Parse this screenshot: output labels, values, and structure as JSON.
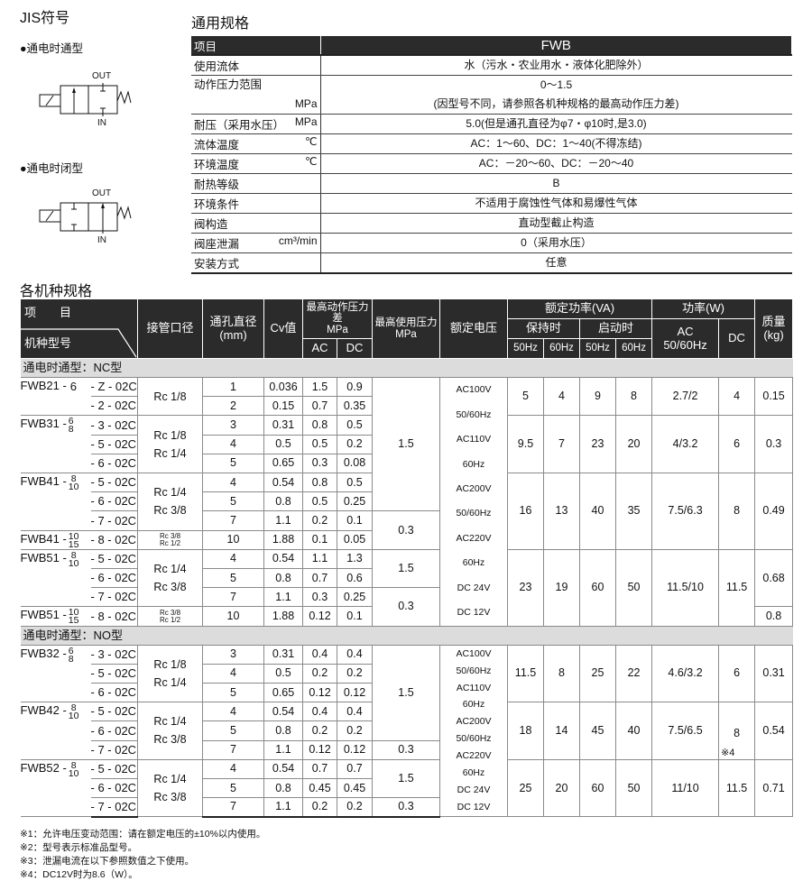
{
  "jis": {
    "title": "JIS符号",
    "no_type": "●通电时通型",
    "nc_type": "●通电时闭型",
    "port_out": "OUT",
    "port_in": "IN"
  },
  "general": {
    "title": "通用规格",
    "header": {
      "label": "项目",
      "value": "FWB"
    },
    "rows": [
      {
        "label": "使用流体",
        "unit": "",
        "value": [
          "水（污水・农业用水・液体化肥除外）"
        ]
      },
      {
        "label": "动作压力范围",
        "unit": "MPa",
        "value": [
          "0～1.5",
          "(因型号不同，请参照各机种规格的最高动作压力差)"
        ]
      },
      {
        "label": "耐压（采用水压）",
        "unit": "MPa",
        "value": [
          "5.0(但是通孔直径为φ7・φ10时,是3.0)"
        ]
      },
      {
        "label": "流体温度",
        "unit": "℃",
        "value": [
          "AC：1～60、DC：1～40(不得冻结)"
        ]
      },
      {
        "label": "环境温度",
        "unit": "℃",
        "value": [
          "AC：－20～60、DC：－20～40"
        ]
      },
      {
        "label": "耐热等级",
        "unit": "",
        "value": [
          "B"
        ]
      },
      {
        "label": "环境条件",
        "unit": "",
        "value": [
          "不适用于腐蚀性气体和易爆性气体"
        ]
      },
      {
        "label": "阀构造",
        "unit": "",
        "value": [
          "直动型截止构造"
        ]
      },
      {
        "label": "阀座泄漏",
        "unit": "cm³/min",
        "value": [
          "0（采用水压）"
        ]
      },
      {
        "label": "安装方式",
        "unit": "",
        "value": [
          "任意"
        ]
      }
    ]
  },
  "models": {
    "title": "各机种规格",
    "header": {
      "item": "项　　目",
      "model": "机种型号",
      "port": "接管口径",
      "bore": "通孔直径",
      "bore_unit": "(mm)",
      "cv": "Cv值",
      "maxdiff": "最高动作压力差",
      "maxdiff_unit": "MPa",
      "ac": "AC",
      "dc": "DC",
      "maxuse": "最高使用压力",
      "maxuse_unit": "MPa",
      "voltage": "额定电压",
      "va": "额定功率(VA)",
      "hold": "保持时",
      "start": "启动时",
      "hz50": "50Hz",
      "hz60": "60Hz",
      "watt": "功率(W)",
      "watt_ac": "AC",
      "watt_ac_hz": "50/60Hz",
      "watt_dc": "DC",
      "mass": "质量",
      "mass_unit": "(kg)"
    },
    "nc": {
      "title": "通电时通型：NC型",
      "rows": [
        {
          "model": {
            "prefix": "FWB21 -",
            "sizes": [
              "6"
            ]
          },
          "suffix": "- Z - 02C",
          "port": [
            "Rc 1/8"
          ],
          "bore": "1",
          "cv": "0.036",
          "ac": "1.5",
          "dc": "0.9",
          "maxp": "1.5",
          "volt": [
            "AC100V",
            "50/60Hz",
            "AC110V",
            "60Hz",
            "AC200V",
            "50/60Hz",
            "AC220V",
            "60Hz",
            "DC  24V",
            "DC  12V"
          ],
          "h50": "5",
          "h60": "4",
          "s50": "9",
          "s60": "8",
          "acw": "2.7/2",
          "dcw": "4",
          "kg": "0.15"
        },
        {
          "suffix": "- 2 - 02C",
          "bore": "2",
          "cv": "0.15",
          "ac": "0.7",
          "dc": "0.35"
        },
        {
          "model": {
            "prefix": "FWB31 -",
            "sizes": [
              "6",
              "8"
            ]
          },
          "suffix": "- 3 - 02C",
          "port": [
            "Rc 1/8",
            "Rc 1/4"
          ],
          "bore": "3",
          "cv": "0.31",
          "ac": "0.8",
          "dc": "0.5",
          "h50": "9.5",
          "h60": "7",
          "s50": "23",
          "s60": "20",
          "acw": "4/3.2",
          "dcw": "6",
          "kg": "0.3"
        },
        {
          "suffix": "- 5 - 02C",
          "bore": "4",
          "cv": "0.5",
          "ac": "0.5",
          "dc": "0.2"
        },
        {
          "suffix": "- 6 - 02C",
          "bore": "5",
          "cv": "0.65",
          "ac": "0.3",
          "dc": "0.08"
        },
        {
          "model": {
            "prefix": "FWB41 -",
            "sizes": [
              "8",
              "10"
            ]
          },
          "suffix": "- 5 - 02C",
          "port": [
            "Rc 1/4",
            "Rc 3/8"
          ],
          "bore": "4",
          "cv": "0.54",
          "ac": "0.8",
          "dc": "0.5",
          "h50": "16",
          "h60": "13",
          "s50": "40",
          "s60": "35",
          "acw": "7.5/6.3",
          "dcw": "8",
          "kg": "0.49"
        },
        {
          "suffix": "- 6 - 02C",
          "bore": "5",
          "cv": "0.8",
          "ac": "0.5",
          "dc": "0.25"
        },
        {
          "suffix": "- 7 - 02C",
          "bore": "7",
          "cv": "1.1",
          "ac": "0.2",
          "dc": "0.1",
          "maxp": "0.3"
        },
        {
          "model": {
            "prefix": "FWB41 -",
            "sizes": [
              "10",
              "15"
            ]
          },
          "suffix": "- 8 - 02C",
          "port": [
            "Rc 3/8",
            "Rc 1/2"
          ],
          "bore": "10",
          "cv": "1.88",
          "ac": "0.1",
          "dc": "0.05"
        },
        {
          "model": {
            "prefix": "FWB51 -",
            "sizes": [
              "8",
              "10"
            ]
          },
          "suffix": "- 5 - 02C",
          "port": [
            "Rc 1/4",
            "Rc 3/8"
          ],
          "bore": "4",
          "cv": "0.54",
          "ac": "1.1",
          "dc": "1.3",
          "maxp": "1.5",
          "h50": "23",
          "h60": "19",
          "s50": "60",
          "s60": "50",
          "acw": "11.5/10",
          "dcw": "11.5",
          "kg": "0.68"
        },
        {
          "suffix": "- 6 - 02C",
          "bore": "5",
          "cv": "0.8",
          "ac": "0.7",
          "dc": "0.6"
        },
        {
          "suffix": "- 7 - 02C",
          "bore": "7",
          "cv": "1.1",
          "ac": "0.3",
          "dc": "0.25",
          "maxp": "0.3"
        },
        {
          "model": {
            "prefix": "FWB51 -",
            "sizes": [
              "10",
              "15"
            ]
          },
          "suffix": "- 8 - 02C",
          "port": [
            "Rc 3/8",
            "Rc 1/2"
          ],
          "bore": "10",
          "cv": "1.88",
          "ac": "0.12",
          "dc": "0.1",
          "kg": "0.8"
        }
      ]
    },
    "no": {
      "title": "通电时通型：NO型",
      "rows": [
        {
          "model": {
            "prefix": "FWB32 -",
            "sizes": [
              "6",
              "8"
            ]
          },
          "suffix": "- 3 - 02C",
          "port": [
            "Rc 1/8",
            "Rc 1/4"
          ],
          "bore": "3",
          "cv": "0.31",
          "ac": "0.4",
          "dc": "0.4",
          "maxp": "1.5",
          "volt": [
            "AC100V",
            "50/60Hz",
            "AC110V",
            "60Hz",
            "AC200V",
            "50/60Hz",
            "AC220V",
            "60Hz",
            "DC  24V",
            "DC  12V"
          ],
          "h50": "11.5",
          "h60": "8",
          "s50": "25",
          "s60": "22",
          "acw": "4.6/3.2",
          "dcw": "6",
          "kg": "0.31"
        },
        {
          "suffix": "- 5 - 02C",
          "bore": "4",
          "cv": "0.5",
          "ac": "0.2",
          "dc": "0.2"
        },
        {
          "suffix": "- 6 - 02C",
          "bore": "5",
          "cv": "0.65",
          "ac": "0.12",
          "dc": "0.12"
        },
        {
          "model": {
            "prefix": "FWB42 -",
            "sizes": [
              "8",
              "10"
            ]
          },
          "suffix": "- 5 - 02C",
          "port": [
            "Rc 1/4",
            "Rc 3/8"
          ],
          "bore": "4",
          "cv": "0.54",
          "ac": "0.4",
          "dc": "0.4",
          "h50": "18",
          "h60": "14",
          "s50": "45",
          "s60": "40",
          "acw": "7.5/6.5",
          "dcw": "8",
          "dcw_note": "※4",
          "kg": "0.54"
        },
        {
          "suffix": "- 6 - 02C",
          "bore": "5",
          "cv": "0.8",
          "ac": "0.2",
          "dc": "0.2"
        },
        {
          "suffix": "- 7 - 02C",
          "bore": "7",
          "cv": "1.1",
          "ac": "0.12",
          "dc": "0.12",
          "maxp": "0.3"
        },
        {
          "model": {
            "prefix": "FWB52 -",
            "sizes": [
              "8",
              "10"
            ]
          },
          "suffix": "- 5 - 02C",
          "port": [
            "Rc 1/4",
            "Rc 3/8"
          ],
          "bore": "4",
          "cv": "0.54",
          "ac": "0.7",
          "dc": "0.7",
          "maxp": "1.5",
          "h50": "25",
          "h60": "20",
          "s50": "60",
          "s60": "50",
          "acw": "11/10",
          "dcw": "11.5",
          "kg": "0.71"
        },
        {
          "suffix": "- 6 - 02C",
          "bore": "5",
          "cv": "0.8",
          "ac": "0.45",
          "dc": "0.45"
        },
        {
          "suffix": "- 7 - 02C",
          "bore": "7",
          "cv": "1.1",
          "ac": "0.2",
          "dc": "0.2",
          "maxp": "0.3"
        }
      ]
    }
  },
  "footnotes": [
    "※1：允许电压变动范围：请在额定电压的±10%以内使用。",
    "※2：型号表示标准品型号。",
    "※3：泄漏电流在以下参照数值之下使用。",
    "※4：DC12V时为8.6（W）。"
  ]
}
